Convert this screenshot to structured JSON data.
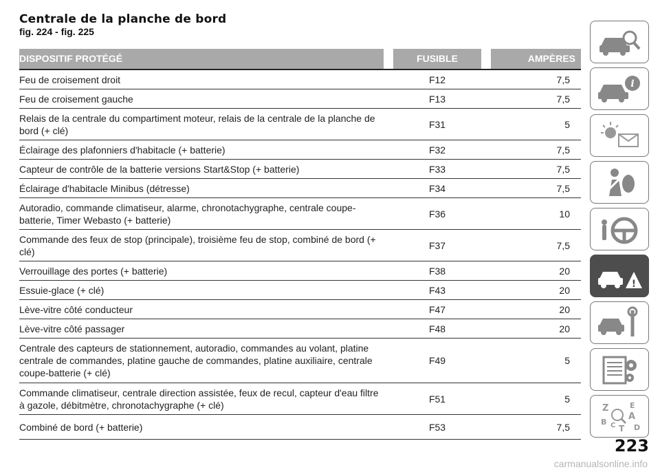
{
  "header": {
    "title": "Centrale de la planche de bord",
    "subtitle": "fig. 224 - fig. 225"
  },
  "table": {
    "columns": [
      "DISPOSITIF PROTÉGÉ",
      "FUSIBLE",
      "AMPÈRES"
    ],
    "rows": [
      {
        "device": "Feu de croisement droit",
        "fuse": "F12",
        "amps": "7,5"
      },
      {
        "device": "Feu de croisement gauche",
        "fuse": "F13",
        "amps": "7,5"
      },
      {
        "device": "Relais de la centrale du compartiment moteur, relais de la centrale de la planche de bord (+ clé)",
        "fuse": "F31",
        "amps": "5"
      },
      {
        "device": "Éclairage des plafonniers d'habitacle (+ batterie)",
        "fuse": "F32",
        "amps": "7,5"
      },
      {
        "device": "Capteur de contrôle de la batterie versions Start&Stop (+ batterie)",
        "fuse": "F33",
        "amps": "7,5"
      },
      {
        "device": "Éclairage d'habitacle Minibus (détresse)",
        "fuse": "F34",
        "amps": "7,5"
      },
      {
        "device": "Autoradio, commande climatiseur, alarme, chronotachygraphe, centrale coupe-batterie, Timer Webasto (+ batterie)",
        "fuse": "F36",
        "amps": "10"
      },
      {
        "device": "Commande des feux de stop (principale), troisième feu de stop, combiné de bord (+ clé)",
        "fuse": "F37",
        "amps": "7,5"
      },
      {
        "device": "Verrouillage des portes (+ batterie)",
        "fuse": "F38",
        "amps": "20"
      },
      {
        "device": "Essuie-glace (+ clé)",
        "fuse": "F43",
        "amps": "20"
      },
      {
        "device": "Lève-vitre côté conducteur",
        "fuse": "F47",
        "amps": "20"
      },
      {
        "device": "Lève-vitre côté passager",
        "fuse": "F48",
        "amps": "20"
      },
      {
        "device": "Centrale des capteurs de stationnement, autoradio, commandes au volant, platine centrale de commandes, platine gauche de commandes, platine auxiliaire, centrale coupe-batterie (+ clé)",
        "fuse": "F49",
        "amps": "5"
      },
      {
        "device": "Commande climatiseur, centrale direction assistée, feux de recul, capteur d'eau filtre à gazole, débitmètre, chronotachygraphe (+ clé)",
        "fuse": "F51",
        "amps": "5"
      },
      {
        "device": "Combiné de bord (+ batterie)",
        "fuse": "F53",
        "amps": "7,5"
      }
    ]
  },
  "side_tabs": [
    {
      "icon": "car-search-icon"
    },
    {
      "icon": "car-info-icon"
    },
    {
      "icon": "warning-lights-icon"
    },
    {
      "icon": "airbag-passenger-icon"
    },
    {
      "icon": "steering-wheel-icon"
    },
    {
      "icon": "car-breakdown-icon",
      "active": true
    },
    {
      "icon": "car-maintenance-icon"
    },
    {
      "icon": "technical-data-icon"
    },
    {
      "icon": "index-az-icon"
    }
  ],
  "page_number": "223",
  "watermark": "carmanualsonline.info",
  "colors": {
    "header_bg": "#a9a9a9",
    "active_tab": "#4d4d4d"
  }
}
